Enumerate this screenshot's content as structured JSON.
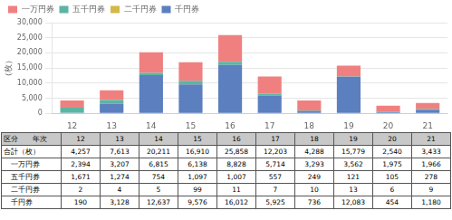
{
  "chart_data": {
    "type": "bar",
    "stacked": true,
    "ylabel": "（枚）",
    "categories": [
      "12",
      "13",
      "14",
      "15",
      "16",
      "17",
      "18",
      "19",
      "20",
      "21"
    ],
    "series": [
      {
        "name": "千円券",
        "color": "#5B7FBF",
        "values": [
          190,
          3128,
          12637,
          9576,
          16012,
          5925,
          736,
          12083,
          454,
          1180
        ]
      },
      {
        "name": "二千円券",
        "color": "#D4B84A",
        "values": [
          2,
          4,
          5,
          99,
          11,
          7,
          10,
          13,
          6,
          9
        ]
      },
      {
        "name": "五千円券",
        "color": "#5BB5A2",
        "values": [
          1671,
          1274,
          754,
          1097,
          1007,
          557,
          249,
          121,
          105,
          278
        ]
      },
      {
        "name": "一万円券",
        "color": "#F08080",
        "values": [
          2394,
          3207,
          6815,
          6138,
          8828,
          5714,
          3293,
          3562,
          1975,
          1966
        ]
      }
    ],
    "ylim": [
      0,
      30000
    ],
    "yticks": [
      0,
      {
        "value": 5000,
        "label": "5,000"
      },
      {
        "value": 10000,
        "label": "10,000"
      },
      {
        "value": 15000,
        "label": "15,000"
      },
      {
        "value": 20000,
        "label": "20,000"
      },
      {
        "value": 25000,
        "label": "25,000"
      },
      {
        "value": 30000,
        "label": "30,000"
      }
    ],
    "grid": true,
    "legend": "upper left",
    "table": {
      "header": [
        "区分　　年次",
        "12",
        "13",
        "14",
        "15",
        "16",
        "17",
        "18",
        "19",
        "20",
        "21"
      ],
      "rows": [
        [
          "合計（枚）",
          "4,257",
          "7,613",
          "20,211",
          "16,910",
          "25,858",
          "12,203",
          "4,288",
          "15,779",
          "2,540",
          "3,433"
        ],
        [
          "　一万円券",
          "2,394",
          "3,207",
          "6,815",
          "6,138",
          "8,828",
          "5,714",
          "3,293",
          "3,562",
          "1,975",
          "1,966"
        ],
        [
          "　五千円券",
          "1,671",
          "1,274",
          "754",
          "1,097",
          "1,007",
          "557",
          "249",
          "121",
          "105",
          "278"
        ],
        [
          "　二千円券",
          "2",
          "4",
          "5",
          "99",
          "11",
          "7",
          "10",
          "13",
          "6",
          "9"
        ],
        [
          "　千円券",
          "190",
          "3,128",
          "12,637",
          "9,576",
          "16,012",
          "5,925",
          "736",
          "12,083",
          "454",
          "1,180"
        ]
      ]
    }
  }
}
